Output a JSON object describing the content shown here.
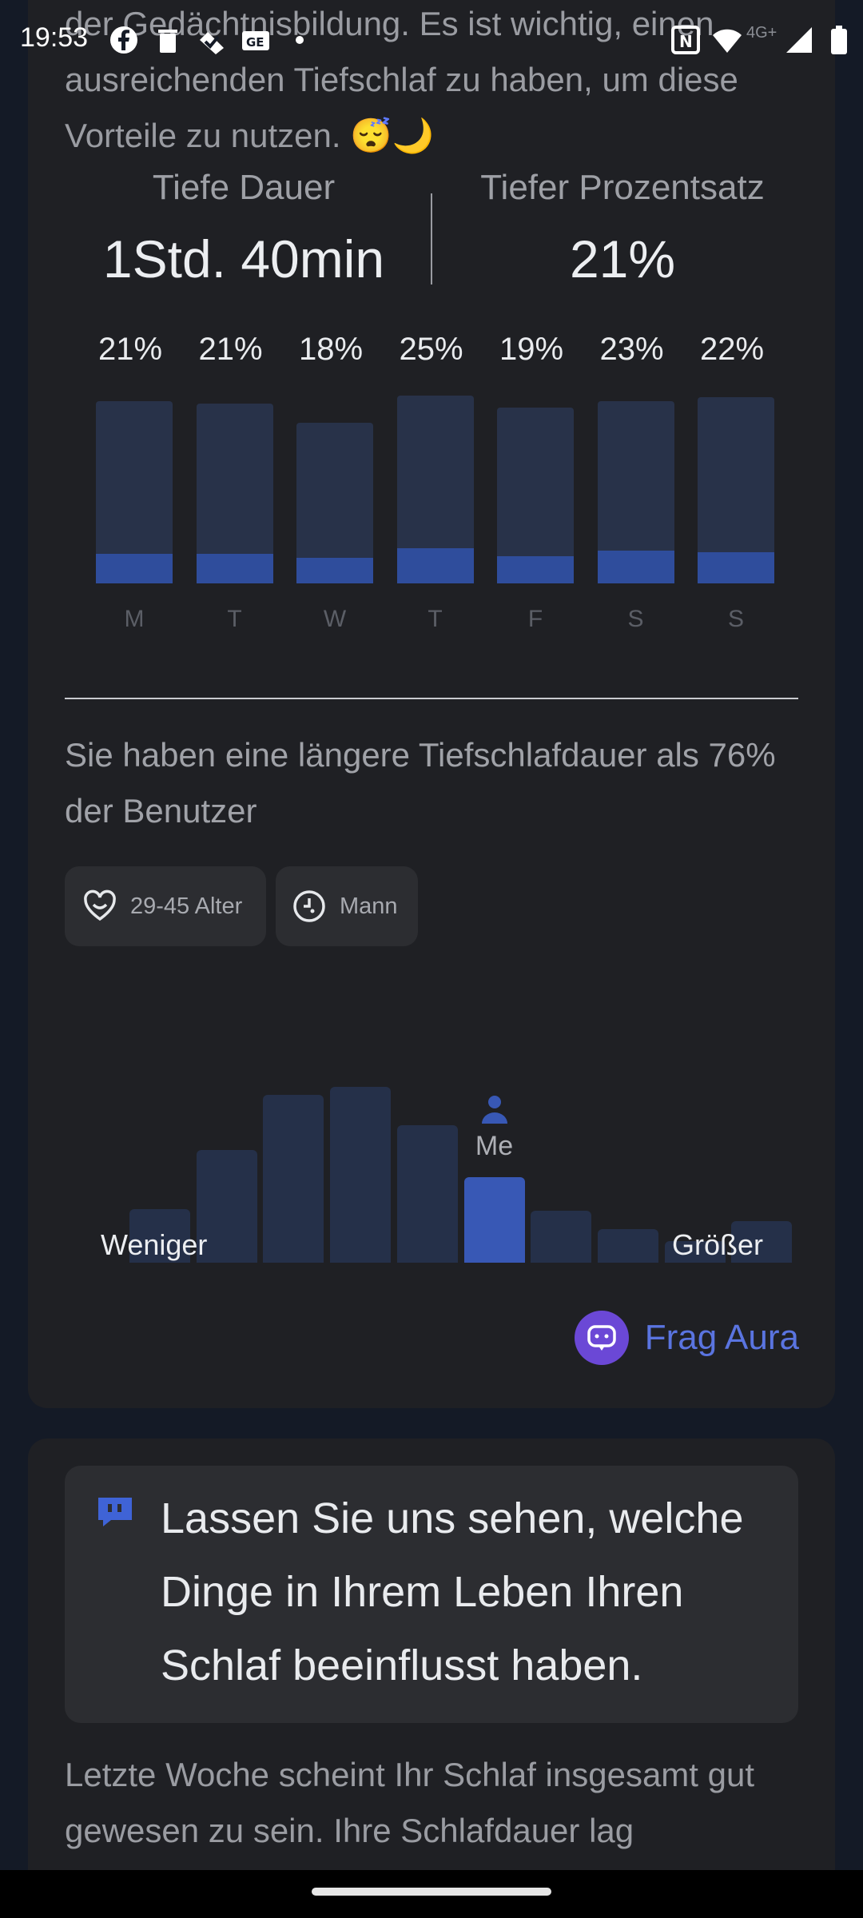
{
  "status_bar": {
    "time": "19:53",
    "icons": [
      "facebook-icon",
      "trash-icon",
      "checkmark-icon",
      "news-icon",
      "dot-icon"
    ],
    "right_icons": [
      "nfc-icon",
      "wifi-icon",
      "cellular-signal-icon",
      "battery-icon"
    ],
    "network_label": "4G+"
  },
  "sleep_card": {
    "intro": "der Gedächtnisbildung. Es ist wichtig, einen ausreichenden Tiefschlaf zu haben, um diese Vorteile zu nutzen. 😴🌙",
    "metrics": [
      {
        "label": "Tiefe Dauer",
        "value": "1Std. 40min"
      },
      {
        "label": "Tiefer Prozentsatz",
        "value": "21%"
      }
    ],
    "week": [
      {
        "day": "M",
        "pct_label": "21%",
        "pct": 21,
        "bar_level": 0.93
      },
      {
        "day": "T",
        "pct_label": "21%",
        "pct": 21,
        "bar_level": 0.92
      },
      {
        "day": "W",
        "pct_label": "18%",
        "pct": 18,
        "bar_level": 0.82
      },
      {
        "day": "T",
        "pct_label": "25%",
        "pct": 25,
        "bar_level": 0.96
      },
      {
        "day": "F",
        "pct_label": "19%",
        "pct": 19,
        "bar_level": 0.9
      },
      {
        "day": "S",
        "pct_label": "23%",
        "pct": 23,
        "bar_level": 0.93
      },
      {
        "day": "S",
        "pct_label": "22%",
        "pct": 22,
        "bar_level": 0.95
      }
    ],
    "compare_text": "Sie haben eine längere Tiefschlafdauer als 76% der Benutzer",
    "chips": [
      {
        "icon": "heart-smile-icon",
        "label": "29-45 Alter"
      },
      {
        "icon": "gender-icon",
        "label": "Mann"
      }
    ],
    "distribution": {
      "levels": [
        0.32,
        0.67,
        1.0,
        1.05,
        0.82,
        0.51,
        0.31,
        0.2,
        0.13,
        0.25
      ],
      "me_index": 5,
      "me_label": "Me",
      "left_label": "Weniger",
      "right_label": "Größer"
    },
    "ask_label": "Frag Aura"
  },
  "insight_card": {
    "headline": "Lassen Sie uns sehen, welche Dinge in Ihrem Leben Ihren Schlaf beeinflusst haben.",
    "body": "Letzte Woche scheint Ihr Schlaf insgesamt gut gewesen zu sein. Ihre Schlafdauer lag"
  },
  "colors": {
    "background": "#141a26",
    "card": "#1f2024",
    "bar_track": "#283249",
    "bar_fill": "#2f4d9c",
    "accent": "#5a74e0",
    "aura": "#6b48d6"
  }
}
